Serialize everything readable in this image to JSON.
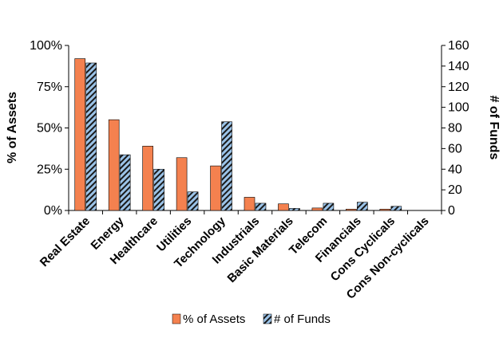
{
  "chart_data": {
    "type": "bar",
    "categories": [
      "Real Estate",
      "Energy",
      "Healthcare",
      "Utilities",
      "Technology",
      "Industrials",
      "Basic Materials",
      "Telecom",
      "Financials",
      "Cons Cyclicals",
      "Cons Non-cyclicals"
    ],
    "series": [
      {
        "name": "% of Assets",
        "axis": "left",
        "color": "#f4814f",
        "values": [
          92,
          55,
          39,
          32,
          27,
          8,
          4,
          1.5,
          0.8,
          0.8,
          0
        ]
      },
      {
        "name": "# of Funds",
        "axis": "right",
        "color": "#9bc3e8",
        "pattern": "diagonal-hatch",
        "values": [
          143,
          54,
          40,
          18,
          86,
          7,
          2,
          7,
          8,
          4,
          0
        ]
      }
    ],
    "y_left": {
      "label": "% of Assets",
      "ticks": [
        "0%",
        "25%",
        "50%",
        "75%",
        "100%"
      ],
      "range": [
        0,
        100
      ]
    },
    "y_right": {
      "label": "# of Funds",
      "ticks": [
        "0",
        "20",
        "40",
        "60",
        "80",
        "100",
        "120",
        "140",
        "160"
      ],
      "range": [
        0,
        160
      ]
    },
    "grid": false,
    "legend_position": "bottom"
  }
}
